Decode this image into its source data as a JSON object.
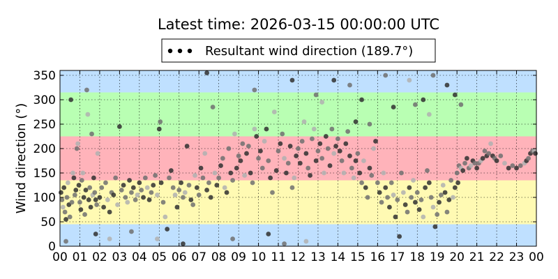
{
  "chart_data": {
    "type": "scatter",
    "title": "Latest time: 2026-03-15 00:00:00 UTC",
    "ylabel": "Wind direction (°)",
    "xlabel": "",
    "xlim": [
      0,
      24
    ],
    "ylim": [
      0,
      360
    ],
    "grid": true,
    "legend_placement": "top-center",
    "x_ticks": [
      "00",
      "01",
      "02",
      "03",
      "04",
      "05",
      "06",
      "07",
      "08",
      "09",
      "10",
      "11",
      "12",
      "13",
      "14",
      "15",
      "16",
      "17",
      "18",
      "19",
      "20",
      "21",
      "22",
      "23",
      "00"
    ],
    "y_ticks": [
      0,
      50,
      100,
      150,
      200,
      250,
      300,
      350
    ],
    "bands": [
      {
        "from": 0,
        "to": 45,
        "color": "#bfe0ff"
      },
      {
        "from": 45,
        "to": 135,
        "color": "#fffab3"
      },
      {
        "from": 135,
        "to": 225,
        "color": "#ffb3ba"
      },
      {
        "from": 225,
        "to": 315,
        "color": "#b9ffb3"
      },
      {
        "from": 315,
        "to": 360,
        "color": "#bfe0ff"
      }
    ],
    "series": [
      {
        "name": "Resultant wind direction (189.7°)",
        "marker_color_dark": "#303030",
        "marker_color_light": "#b0b0b0",
        "points": [
          [
            0.05,
            110
          ],
          [
            0.1,
            95
          ],
          [
            0.15,
            80
          ],
          [
            0.2,
            120
          ],
          [
            0.25,
            70
          ],
          [
            0.3,
            55
          ],
          [
            0.35,
            100
          ],
          [
            0.4,
            130
          ],
          [
            0.45,
            85
          ],
          [
            0.5,
            60
          ],
          [
            0.55,
            300
          ],
          [
            0.6,
            90
          ],
          [
            0.65,
            150
          ],
          [
            0.7,
            140
          ],
          [
            0.75,
            105
          ],
          [
            0.8,
            115
          ],
          [
            0.85,
            200
          ],
          [
            0.9,
            210
          ],
          [
            0.95,
            125
          ],
          [
            1.0,
            90
          ],
          [
            1.05,
            75
          ],
          [
            1.1,
            135
          ],
          [
            1.15,
            150
          ],
          [
            1.2,
            100
          ],
          [
            1.25,
            65
          ],
          [
            1.3,
            115
          ],
          [
            1.35,
            320
          ],
          [
            1.4,
            270
          ],
          [
            1.45,
            95
          ],
          [
            1.5,
            120
          ],
          [
            1.55,
            80
          ],
          [
            1.6,
            230
          ],
          [
            1.65,
            105
          ],
          [
            1.7,
            140
          ],
          [
            1.75,
            110
          ],
          [
            1.8,
            95
          ],
          [
            1.85,
            85
          ],
          [
            1.9,
            190
          ],
          [
            2.0,
            100
          ],
          [
            2.1,
            120
          ],
          [
            2.2,
            80
          ],
          [
            2.3,
            130
          ],
          [
            2.4,
            95
          ],
          [
            2.5,
            70
          ],
          [
            2.6,
            110
          ],
          [
            2.7,
            105
          ],
          [
            2.8,
            140
          ],
          [
            2.9,
            85
          ],
          [
            3.0,
            245
          ],
          [
            3.1,
            115
          ],
          [
            3.2,
            125
          ],
          [
            3.3,
            100
          ],
          [
            3.4,
            90
          ],
          [
            3.5,
            135
          ],
          [
            3.6,
            110
          ],
          [
            3.7,
            120
          ],
          [
            3.8,
            95
          ],
          [
            3.9,
            105
          ],
          [
            4.0,
            130
          ],
          [
            4.1,
            115
          ],
          [
            4.2,
            100
          ],
          [
            4.3,
            140
          ],
          [
            4.4,
            120
          ],
          [
            4.5,
            95
          ],
          [
            4.6,
            110
          ],
          [
            4.7,
            125
          ],
          [
            4.8,
            145
          ],
          [
            4.9,
            105
          ],
          [
            5.0,
            240
          ],
          [
            5.05,
            255
          ],
          [
            5.1,
            130
          ],
          [
            5.2,
            90
          ],
          [
            5.3,
            60
          ],
          [
            5.4,
            35
          ],
          [
            5.5,
            140
          ],
          [
            5.6,
            155
          ],
          [
            5.7,
            120
          ],
          [
            5.8,
            105
          ],
          [
            5.9,
            80
          ],
          [
            6.0,
            115
          ],
          [
            6.1,
            130
          ],
          [
            6.2,
            100
          ],
          [
            6.3,
            110
          ],
          [
            6.4,
            205
          ],
          [
            6.5,
            125
          ],
          [
            6.6,
            95
          ],
          [
            6.7,
            85
          ],
          [
            6.8,
            145
          ],
          [
            6.9,
            120
          ],
          [
            7.0,
            105
          ],
          [
            7.1,
            160
          ],
          [
            7.2,
            140
          ],
          [
            7.3,
            190
          ],
          [
            7.4,
            115
          ],
          [
            7.5,
            130
          ],
          [
            7.6,
            100
          ],
          [
            7.7,
            285
          ],
          [
            7.8,
            150
          ],
          [
            7.9,
            125
          ],
          [
            8.0,
            140
          ],
          [
            8.1,
            165
          ],
          [
            8.2,
            180
          ],
          [
            8.3,
            120
          ],
          [
            8.4,
            110
          ],
          [
            8.5,
            200
          ],
          [
            8.6,
            150
          ],
          [
            8.7,
            135
          ],
          [
            8.8,
            230
          ],
          [
            8.9,
            160
          ],
          [
            9.0,
            185
          ],
          [
            9.1,
            175
          ],
          [
            9.2,
            210
          ],
          [
            9.3,
            145
          ],
          [
            9.4,
            190
          ],
          [
            9.5,
            205
          ],
          [
            9.6,
            150
          ],
          [
            9.7,
            130
          ],
          [
            9.8,
            240
          ],
          [
            9.9,
            225
          ],
          [
            10.0,
            180
          ],
          [
            10.1,
            195
          ],
          [
            10.2,
            160
          ],
          [
            10.3,
            215
          ],
          [
            10.4,
            240
          ],
          [
            10.5,
            175
          ],
          [
            10.6,
            140
          ],
          [
            10.7,
            110
          ],
          [
            10.8,
            275
          ],
          [
            10.9,
            155
          ],
          [
            11.0,
            195
          ],
          [
            11.1,
            210
          ],
          [
            11.2,
            230
          ],
          [
            11.3,
            180
          ],
          [
            11.4,
            150
          ],
          [
            11.5,
            170
          ],
          [
            11.6,
            205
          ],
          [
            11.7,
            120
          ],
          [
            11.8,
            140
          ],
          [
            11.9,
            185
          ],
          [
            12.0,
            200
          ],
          [
            12.1,
            170
          ],
          [
            12.2,
            215
          ],
          [
            12.3,
            255
          ],
          [
            12.4,
            190
          ],
          [
            12.5,
            160
          ],
          [
            12.6,
            145
          ],
          [
            12.7,
            220
          ],
          [
            12.8,
            240
          ],
          [
            12.9,
            175
          ],
          [
            13.0,
            195
          ],
          [
            13.1,
            210
          ],
          [
            13.2,
            180
          ],
          [
            13.3,
            150
          ],
          [
            13.4,
            225
          ],
          [
            13.5,
            200
          ],
          [
            13.6,
            165
          ],
          [
            13.7,
            240
          ],
          [
            13.8,
            190
          ],
          [
            13.9,
            205
          ],
          [
            14.0,
            220
          ],
          [
            14.1,
            195
          ],
          [
            14.2,
            175
          ],
          [
            14.3,
            150
          ],
          [
            14.4,
            210
          ],
          [
            14.5,
            235
          ],
          [
            14.6,
            185
          ],
          [
            14.7,
            160
          ],
          [
            14.8,
            140
          ],
          [
            14.9,
            175
          ],
          [
            15.0,
            190
          ],
          [
            15.1,
            150
          ],
          [
            15.2,
            130
          ],
          [
            15.3,
            175
          ],
          [
            15.4,
            120
          ],
          [
            15.5,
            100
          ],
          [
            15.6,
            160
          ],
          [
            15.7,
            145
          ],
          [
            15.8,
            200
          ],
          [
            15.9,
            215
          ],
          [
            16.0,
            130
          ],
          [
            16.1,
            110
          ],
          [
            16.2,
            90
          ],
          [
            16.3,
            150
          ],
          [
            16.4,
            120
          ],
          [
            16.5,
            100
          ],
          [
            16.6,
            80
          ],
          [
            16.7,
            130
          ],
          [
            16.8,
            105
          ],
          [
            16.9,
            60
          ],
          [
            17.0,
            95
          ],
          [
            17.1,
            20
          ],
          [
            17.2,
            150
          ],
          [
            17.3,
            110
          ],
          [
            17.4,
            85
          ],
          [
            17.5,
            70
          ],
          [
            17.6,
            120
          ],
          [
            17.7,
            100
          ],
          [
            17.8,
            135
          ],
          [
            17.9,
            90
          ],
          [
            18.0,
            110
          ],
          [
            18.1,
            75
          ],
          [
            18.2,
            95
          ],
          [
            18.3,
            60
          ],
          [
            18.4,
            120
          ],
          [
            18.5,
            155
          ],
          [
            18.6,
            130
          ],
          [
            18.7,
            100
          ],
          [
            18.8,
            80
          ],
          [
            18.9,
            40
          ],
          [
            19.0,
            65
          ],
          [
            19.1,
            90
          ],
          [
            19.2,
            105
          ],
          [
            19.3,
            125
          ],
          [
            19.4,
            110
          ],
          [
            19.5,
            70
          ],
          [
            19.6,
            95
          ],
          [
            19.7,
            135
          ],
          [
            19.8,
            100
          ],
          [
            19.9,
            120
          ],
          [
            20.0,
            150
          ],
          [
            20.05,
            130
          ],
          [
            20.1,
            165
          ],
          [
            20.2,
            160
          ],
          [
            20.3,
            155
          ],
          [
            20.4,
            170
          ],
          [
            20.5,
            180
          ],
          [
            20.6,
            160
          ],
          [
            20.7,
            165
          ],
          [
            20.8,
            175
          ],
          [
            20.9,
            170
          ],
          [
            21.0,
            160
          ],
          [
            21.1,
            170
          ],
          [
            21.2,
            175
          ],
          [
            21.3,
            180
          ],
          [
            21.4,
            195
          ],
          [
            21.5,
            185
          ],
          [
            21.6,
            190
          ],
          [
            21.7,
            210
          ],
          [
            21.8,
            185
          ],
          [
            21.9,
            180
          ],
          [
            22.0,
            175
          ],
          [
            22.2,
            185
          ],
          [
            22.4,
            170
          ],
          [
            22.6,
            160
          ],
          [
            22.8,
            165
          ],
          [
            23.0,
            160
          ],
          [
            23.2,
            165
          ],
          [
            23.4,
            170
          ],
          [
            23.5,
            175
          ],
          [
            23.6,
            180
          ],
          [
            23.7,
            190
          ],
          [
            23.8,
            195
          ],
          [
            23.9,
            195
          ],
          [
            23.95,
            190
          ],
          [
            0.3,
            10
          ],
          [
            1.8,
            25
          ],
          [
            3.6,
            30
          ],
          [
            4.9,
            15
          ],
          [
            6.2,
            5
          ],
          [
            8.7,
            15
          ],
          [
            10.5,
            25
          ],
          [
            11.3,
            5
          ],
          [
            12.4,
            10
          ],
          [
            13.8,
            340
          ],
          [
            14.6,
            330
          ],
          [
            15.2,
            300
          ],
          [
            16.4,
            350
          ],
          [
            17.6,
            340
          ],
          [
            18.3,
            300
          ],
          [
            18.8,
            350
          ],
          [
            19.5,
            330
          ],
          [
            20.2,
            290
          ],
          [
            2.5,
            15
          ],
          [
            7.4,
            355
          ],
          [
            9.8,
            320
          ],
          [
            11.7,
            340
          ],
          [
            12.9,
            310
          ],
          [
            13.2,
            295
          ],
          [
            14.9,
            255
          ],
          [
            15.6,
            250
          ],
          [
            16.8,
            285
          ],
          [
            17.9,
            290
          ],
          [
            18.6,
            270
          ],
          [
            19.9,
            310
          ]
        ]
      }
    ]
  }
}
